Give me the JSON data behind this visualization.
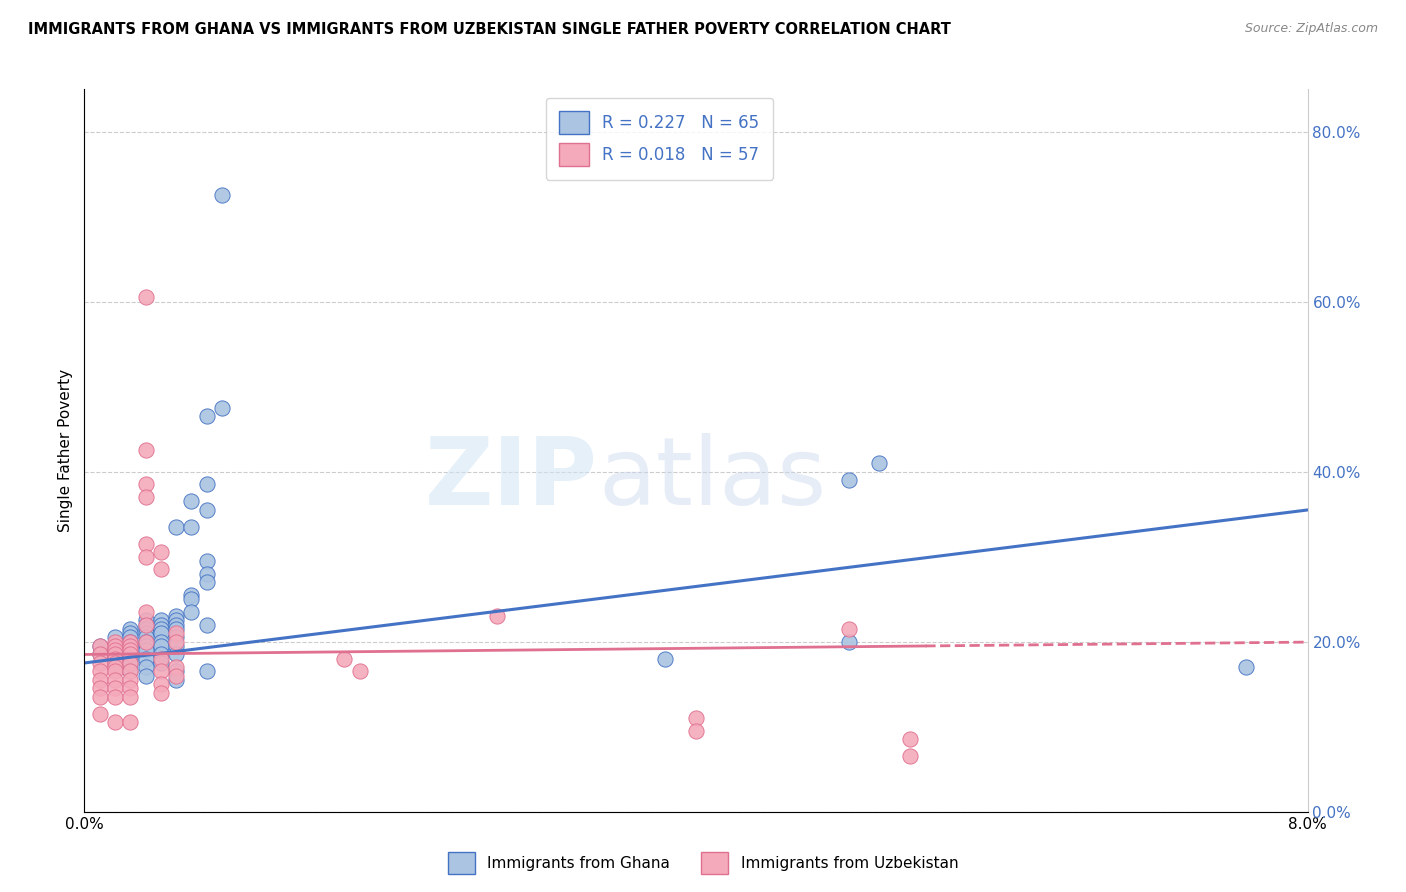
{
  "title": "IMMIGRANTS FROM GHANA VS IMMIGRANTS FROM UZBEKISTAN SINGLE FATHER POVERTY CORRELATION CHART",
  "source": "Source: ZipAtlas.com",
  "ylabel": "Single Father Poverty",
  "right_yticks": [
    "0.0%",
    "20.0%",
    "40.0%",
    "60.0%",
    "80.0%"
  ],
  "right_ytick_vals": [
    0.0,
    0.2,
    0.4,
    0.6,
    0.8
  ],
  "xlim": [
    0.0,
    0.08
  ],
  "ylim": [
    0.0,
    0.85
  ],
  "ghana_R": 0.227,
  "ghana_N": 65,
  "uzbek_R": 0.018,
  "uzbek_N": 57,
  "ghana_color": "#aac4e2",
  "uzbek_color": "#f4aabb",
  "ghana_line_color": "#4472c4",
  "uzbek_line_color": "#e07090",
  "watermark": "ZIPatlas",
  "ghana_points": [
    [
      0.001,
      0.195
    ],
    [
      0.001,
      0.185
    ],
    [
      0.002,
      0.205
    ],
    [
      0.002,
      0.195
    ],
    [
      0.002,
      0.185
    ],
    [
      0.002,
      0.175
    ],
    [
      0.003,
      0.215
    ],
    [
      0.003,
      0.21
    ],
    [
      0.003,
      0.205
    ],
    [
      0.003,
      0.2
    ],
    [
      0.003,
      0.195
    ],
    [
      0.003,
      0.19
    ],
    [
      0.003,
      0.185
    ],
    [
      0.003,
      0.18
    ],
    [
      0.003,
      0.175
    ],
    [
      0.003,
      0.165
    ],
    [
      0.004,
      0.225
    ],
    [
      0.004,
      0.22
    ],
    [
      0.004,
      0.215
    ],
    [
      0.004,
      0.21
    ],
    [
      0.004,
      0.205
    ],
    [
      0.004,
      0.2
    ],
    [
      0.004,
      0.195
    ],
    [
      0.004,
      0.19
    ],
    [
      0.004,
      0.18
    ],
    [
      0.004,
      0.17
    ],
    [
      0.004,
      0.16
    ],
    [
      0.005,
      0.225
    ],
    [
      0.005,
      0.22
    ],
    [
      0.005,
      0.215
    ],
    [
      0.005,
      0.21
    ],
    [
      0.005,
      0.2
    ],
    [
      0.005,
      0.195
    ],
    [
      0.005,
      0.185
    ],
    [
      0.005,
      0.175
    ],
    [
      0.006,
      0.335
    ],
    [
      0.006,
      0.23
    ],
    [
      0.006,
      0.225
    ],
    [
      0.006,
      0.22
    ],
    [
      0.006,
      0.215
    ],
    [
      0.006,
      0.205
    ],
    [
      0.006,
      0.195
    ],
    [
      0.006,
      0.185
    ],
    [
      0.006,
      0.165
    ],
    [
      0.006,
      0.155
    ],
    [
      0.007,
      0.365
    ],
    [
      0.007,
      0.335
    ],
    [
      0.007,
      0.255
    ],
    [
      0.007,
      0.25
    ],
    [
      0.007,
      0.235
    ],
    [
      0.008,
      0.465
    ],
    [
      0.008,
      0.385
    ],
    [
      0.008,
      0.355
    ],
    [
      0.008,
      0.295
    ],
    [
      0.008,
      0.28
    ],
    [
      0.008,
      0.27
    ],
    [
      0.008,
      0.22
    ],
    [
      0.008,
      0.165
    ],
    [
      0.009,
      0.725
    ],
    [
      0.009,
      0.475
    ],
    [
      0.038,
      0.18
    ],
    [
      0.05,
      0.2
    ],
    [
      0.05,
      0.39
    ],
    [
      0.052,
      0.41
    ],
    [
      0.076,
      0.17
    ]
  ],
  "uzbek_points": [
    [
      0.001,
      0.195
    ],
    [
      0.001,
      0.185
    ],
    [
      0.001,
      0.175
    ],
    [
      0.001,
      0.165
    ],
    [
      0.001,
      0.155
    ],
    [
      0.001,
      0.145
    ],
    [
      0.001,
      0.135
    ],
    [
      0.001,
      0.115
    ],
    [
      0.002,
      0.2
    ],
    [
      0.002,
      0.195
    ],
    [
      0.002,
      0.19
    ],
    [
      0.002,
      0.185
    ],
    [
      0.002,
      0.18
    ],
    [
      0.002,
      0.175
    ],
    [
      0.002,
      0.17
    ],
    [
      0.002,
      0.165
    ],
    [
      0.002,
      0.155
    ],
    [
      0.002,
      0.145
    ],
    [
      0.002,
      0.135
    ],
    [
      0.002,
      0.105
    ],
    [
      0.003,
      0.2
    ],
    [
      0.003,
      0.195
    ],
    [
      0.003,
      0.19
    ],
    [
      0.003,
      0.185
    ],
    [
      0.003,
      0.175
    ],
    [
      0.003,
      0.165
    ],
    [
      0.003,
      0.155
    ],
    [
      0.003,
      0.145
    ],
    [
      0.003,
      0.135
    ],
    [
      0.003,
      0.105
    ],
    [
      0.004,
      0.605
    ],
    [
      0.004,
      0.425
    ],
    [
      0.004,
      0.385
    ],
    [
      0.004,
      0.37
    ],
    [
      0.004,
      0.315
    ],
    [
      0.004,
      0.3
    ],
    [
      0.004,
      0.235
    ],
    [
      0.004,
      0.22
    ],
    [
      0.004,
      0.2
    ],
    [
      0.005,
      0.305
    ],
    [
      0.005,
      0.285
    ],
    [
      0.005,
      0.18
    ],
    [
      0.005,
      0.165
    ],
    [
      0.005,
      0.15
    ],
    [
      0.005,
      0.14
    ],
    [
      0.006,
      0.21
    ],
    [
      0.006,
      0.2
    ],
    [
      0.006,
      0.17
    ],
    [
      0.006,
      0.16
    ],
    [
      0.017,
      0.18
    ],
    [
      0.018,
      0.165
    ],
    [
      0.027,
      0.23
    ],
    [
      0.04,
      0.11
    ],
    [
      0.04,
      0.095
    ],
    [
      0.05,
      0.215
    ],
    [
      0.054,
      0.085
    ],
    [
      0.054,
      0.065
    ]
  ]
}
